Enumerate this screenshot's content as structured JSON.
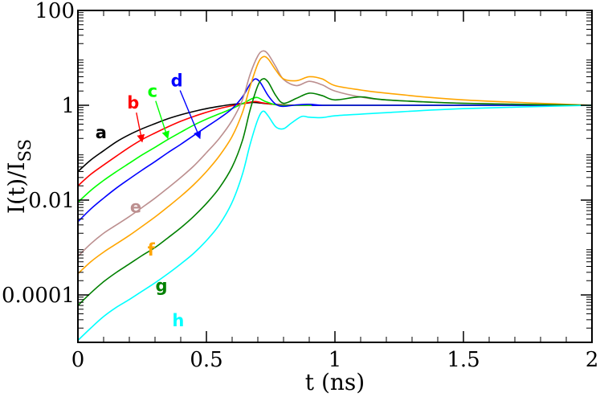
{
  "chart_data": {
    "type": "line",
    "xlabel": "t (ns)",
    "ylabel": "I(t)/I",
    "ylabel_subscript": "SS",
    "y_scale": "log",
    "xlim": [
      0,
      2
    ],
    "ylim": [
      1e-05,
      100
    ],
    "x_ticks": [
      0,
      0.5,
      1,
      1.5,
      2
    ],
    "x_tick_labels": [
      "0",
      "0.5",
      "1",
      "1.5",
      "2"
    ],
    "y_ticks": [
      0.0001,
      0.01,
      1,
      100
    ],
    "y_tick_labels": [
      "0.0001",
      "0.01",
      "1",
      "100"
    ],
    "series": [
      {
        "name": "a",
        "color": "#000000",
        "points": [
          [
            0,
            0.04
          ],
          [
            0.05,
            0.07
          ],
          [
            0.1,
            0.11
          ],
          [
            0.15,
            0.17
          ],
          [
            0.2,
            0.24
          ],
          [
            0.25,
            0.32
          ],
          [
            0.3,
            0.41
          ],
          [
            0.35,
            0.52
          ],
          [
            0.4,
            0.63
          ],
          [
            0.45,
            0.74
          ],
          [
            0.5,
            0.85
          ],
          [
            0.55,
            0.95
          ],
          [
            0.6,
            1.04
          ],
          [
            0.65,
            1.1
          ],
          [
            0.68,
            1.15
          ],
          [
            0.7,
            1.13
          ],
          [
            0.75,
            1.06
          ],
          [
            0.8,
            1.02
          ],
          [
            0.9,
            1.0
          ],
          [
            1.0,
            1.0
          ],
          [
            1.5,
            1.0
          ],
          [
            2.0,
            1.0
          ]
        ]
      },
      {
        "name": "b",
        "color": "#ff0000",
        "points": [
          [
            0,
            0.02
          ],
          [
            0.05,
            0.035
          ],
          [
            0.1,
            0.055
          ],
          [
            0.15,
            0.085
          ],
          [
            0.2,
            0.13
          ],
          [
            0.25,
            0.19
          ],
          [
            0.3,
            0.26
          ],
          [
            0.35,
            0.35
          ],
          [
            0.4,
            0.46
          ],
          [
            0.45,
            0.58
          ],
          [
            0.5,
            0.71
          ],
          [
            0.55,
            0.85
          ],
          [
            0.6,
            0.98
          ],
          [
            0.65,
            1.1
          ],
          [
            0.69,
            1.2
          ],
          [
            0.72,
            1.12
          ],
          [
            0.78,
            1.02
          ],
          [
            0.85,
            1.0
          ],
          [
            1.0,
            1.0
          ],
          [
            2.0,
            1.0
          ]
        ]
      },
      {
        "name": "c",
        "color": "#00ff00",
        "points": [
          [
            0,
            0.009
          ],
          [
            0.05,
            0.016
          ],
          [
            0.1,
            0.026
          ],
          [
            0.15,
            0.04
          ],
          [
            0.2,
            0.06
          ],
          [
            0.25,
            0.09
          ],
          [
            0.3,
            0.13
          ],
          [
            0.35,
            0.19
          ],
          [
            0.4,
            0.27
          ],
          [
            0.45,
            0.38
          ],
          [
            0.5,
            0.51
          ],
          [
            0.55,
            0.66
          ],
          [
            0.6,
            0.85
          ],
          [
            0.65,
            1.15
          ],
          [
            0.68,
            1.4
          ],
          [
            0.7,
            1.45
          ],
          [
            0.73,
            1.2
          ],
          [
            0.78,
            1.0
          ],
          [
            0.85,
            1.0
          ],
          [
            1.0,
            1.0
          ],
          [
            2.0,
            1.0
          ]
        ]
      },
      {
        "name": "d",
        "color": "#0000ff",
        "points": [
          [
            0,
            0.0035
          ],
          [
            0.05,
            0.0065
          ],
          [
            0.1,
            0.011
          ],
          [
            0.15,
            0.018
          ],
          [
            0.2,
            0.028
          ],
          [
            0.25,
            0.043
          ],
          [
            0.3,
            0.065
          ],
          [
            0.35,
            0.1
          ],
          [
            0.4,
            0.15
          ],
          [
            0.45,
            0.23
          ],
          [
            0.5,
            0.35
          ],
          [
            0.55,
            0.53
          ],
          [
            0.6,
            0.85
          ],
          [
            0.64,
            1.5
          ],
          [
            0.67,
            2.8
          ],
          [
            0.69,
            3.6
          ],
          [
            0.71,
            3.0
          ],
          [
            0.74,
            1.6
          ],
          [
            0.77,
            1.05
          ],
          [
            0.8,
            0.95
          ],
          [
            0.85,
            1.02
          ],
          [
            0.9,
            1.05
          ],
          [
            0.95,
            1.0
          ],
          [
            1.0,
            1.0
          ],
          [
            2.0,
            1.0
          ]
        ]
      },
      {
        "name": "e",
        "color": "#bc8f8f",
        "points": [
          [
            0,
            0.00065
          ],
          [
            0.05,
            0.0012
          ],
          [
            0.1,
            0.002
          ],
          [
            0.15,
            0.003
          ],
          [
            0.2,
            0.0045
          ],
          [
            0.25,
            0.007
          ],
          [
            0.3,
            0.011
          ],
          [
            0.35,
            0.018
          ],
          [
            0.4,
            0.03
          ],
          [
            0.45,
            0.052
          ],
          [
            0.5,
            0.1
          ],
          [
            0.55,
            0.2
          ],
          [
            0.6,
            0.48
          ],
          [
            0.64,
            1.3
          ],
          [
            0.67,
            4.5
          ],
          [
            0.7,
            11
          ],
          [
            0.72,
            14
          ],
          [
            0.74,
            12
          ],
          [
            0.77,
            6.5
          ],
          [
            0.8,
            3.5
          ],
          [
            0.85,
            2.6
          ],
          [
            0.9,
            3.2
          ],
          [
            0.95,
            2.7
          ],
          [
            1.0,
            2.0
          ],
          [
            1.1,
            1.5
          ],
          [
            1.2,
            1.3
          ],
          [
            1.5,
            1.1
          ],
          [
            2.0,
            1.0
          ]
        ]
      },
      {
        "name": "f",
        "color": "#ffa500",
        "points": [
          [
            0,
            0.00028
          ],
          [
            0.05,
            0.0005
          ],
          [
            0.1,
            0.0008
          ],
          [
            0.15,
            0.0012
          ],
          [
            0.2,
            0.0018
          ],
          [
            0.25,
            0.0028
          ],
          [
            0.3,
            0.0044
          ],
          [
            0.35,
            0.0072
          ],
          [
            0.4,
            0.012
          ],
          [
            0.45,
            0.021
          ],
          [
            0.5,
            0.04
          ],
          [
            0.55,
            0.085
          ],
          [
            0.6,
            0.22
          ],
          [
            0.64,
            0.7
          ],
          [
            0.67,
            2.5
          ],
          [
            0.7,
            7.5
          ],
          [
            0.72,
            10.5
          ],
          [
            0.74,
            9.5
          ],
          [
            0.77,
            5.5
          ],
          [
            0.8,
            3.6
          ],
          [
            0.85,
            3.3
          ],
          [
            0.9,
            4.0
          ],
          [
            0.95,
            3.6
          ],
          [
            1.0,
            2.6
          ],
          [
            1.1,
            2.1
          ],
          [
            1.2,
            1.8
          ],
          [
            1.5,
            1.3
          ],
          [
            2.0,
            1.0
          ]
        ]
      },
      {
        "name": "g",
        "color": "#008000",
        "points": [
          [
            0,
            6e-05
          ],
          [
            0.05,
            0.00011
          ],
          [
            0.1,
            0.00019
          ],
          [
            0.15,
            0.0003
          ],
          [
            0.2,
            0.00045
          ],
          [
            0.25,
            0.00068
          ],
          [
            0.3,
            0.001
          ],
          [
            0.35,
            0.0016
          ],
          [
            0.4,
            0.0026
          ],
          [
            0.45,
            0.0045
          ],
          [
            0.5,
            0.0085
          ],
          [
            0.55,
            0.018
          ],
          [
            0.6,
            0.05
          ],
          [
            0.64,
            0.18
          ],
          [
            0.67,
            0.8
          ],
          [
            0.7,
            2.6
          ],
          [
            0.72,
            3.6
          ],
          [
            0.74,
            3.1
          ],
          [
            0.77,
            1.6
          ],
          [
            0.8,
            1.1
          ],
          [
            0.85,
            1.4
          ],
          [
            0.9,
            1.8
          ],
          [
            0.95,
            1.6
          ],
          [
            1.0,
            1.3
          ],
          [
            1.1,
            1.5
          ],
          [
            1.2,
            1.3
          ],
          [
            1.5,
            1.1
          ],
          [
            2.0,
            1.0
          ]
        ]
      },
      {
        "name": "h",
        "color": "#00ffff",
        "points": [
          [
            0,
            1.1e-05
          ],
          [
            0.05,
            2e-05
          ],
          [
            0.1,
            3.5e-05
          ],
          [
            0.15,
            5.5e-05
          ],
          [
            0.2,
            8e-05
          ],
          [
            0.25,
            0.00012
          ],
          [
            0.3,
            0.00018
          ],
          [
            0.35,
            0.00028
          ],
          [
            0.4,
            0.00045
          ],
          [
            0.45,
            0.00075
          ],
          [
            0.5,
            0.0014
          ],
          [
            0.55,
            0.003
          ],
          [
            0.6,
            0.009
          ],
          [
            0.64,
            0.035
          ],
          [
            0.67,
            0.15
          ],
          [
            0.7,
            0.5
          ],
          [
            0.72,
            0.75
          ],
          [
            0.74,
            0.6
          ],
          [
            0.77,
            0.35
          ],
          [
            0.8,
            0.32
          ],
          [
            0.83,
            0.42
          ],
          [
            0.87,
            0.58
          ],
          [
            0.9,
            0.56
          ],
          [
            0.95,
            0.55
          ],
          [
            1.0,
            0.6
          ],
          [
            1.1,
            0.65
          ],
          [
            1.2,
            0.7
          ],
          [
            1.5,
            0.85
          ],
          [
            2.0,
            1.0
          ]
        ]
      }
    ],
    "annotations": [
      {
        "text": "a",
        "x": 0.09,
        "y": 0.2,
        "color": "#000000"
      },
      {
        "text": "b",
        "x": 0.215,
        "y": 0.85,
        "color": "#ff0000",
        "arrow_to": [
          0.25,
          0.17
        ]
      },
      {
        "text": "c",
        "x": 0.29,
        "y": 1.5,
        "color": "#00ff00",
        "arrow_to": [
          0.35,
          0.2
        ]
      },
      {
        "text": "d",
        "x": 0.385,
        "y": 2.5,
        "color": "#0000ff",
        "arrow_to": [
          0.475,
          0.2
        ]
      },
      {
        "text": "e",
        "x": 0.225,
        "y": 0.0055,
        "color": "#bc8f8f"
      },
      {
        "text": "f",
        "x": 0.285,
        "y": 0.00068,
        "color": "#ffa500"
      },
      {
        "text": "g",
        "x": 0.325,
        "y": 0.00012,
        "color": "#008000"
      },
      {
        "text": "h",
        "x": 0.39,
        "y": 2.2e-05,
        "color": "#00ffff"
      }
    ]
  }
}
